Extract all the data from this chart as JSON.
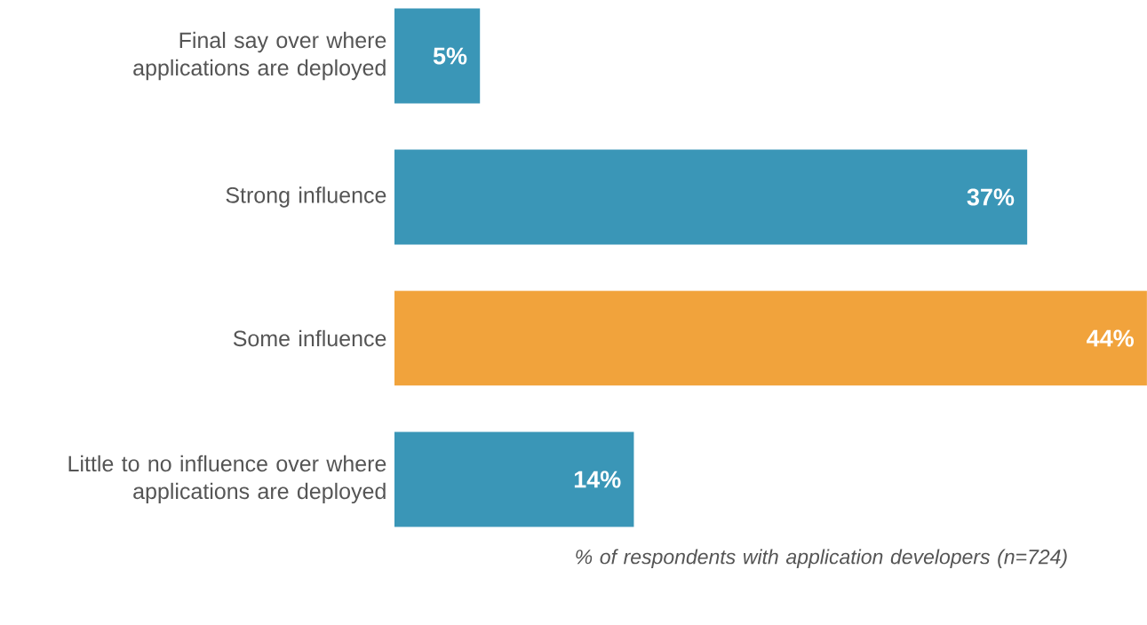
{
  "chart_data": {
    "type": "bar",
    "orientation": "horizontal",
    "categories": [
      "Final say over where applications are deployed",
      "Strong influence",
      "Some influence",
      "Little to no influence over where applications are deployed"
    ],
    "values": [
      5,
      37,
      44,
      14
    ],
    "colors": [
      "#3a96b7",
      "#3a96b7",
      "#f1a33c",
      "#3a96b7"
    ],
    "value_labels": [
      "5%",
      "37%",
      "44%",
      "14%"
    ],
    "xlabel": "% of respondents with application developers (n=724)",
    "tick_labels": "y"
  }
}
